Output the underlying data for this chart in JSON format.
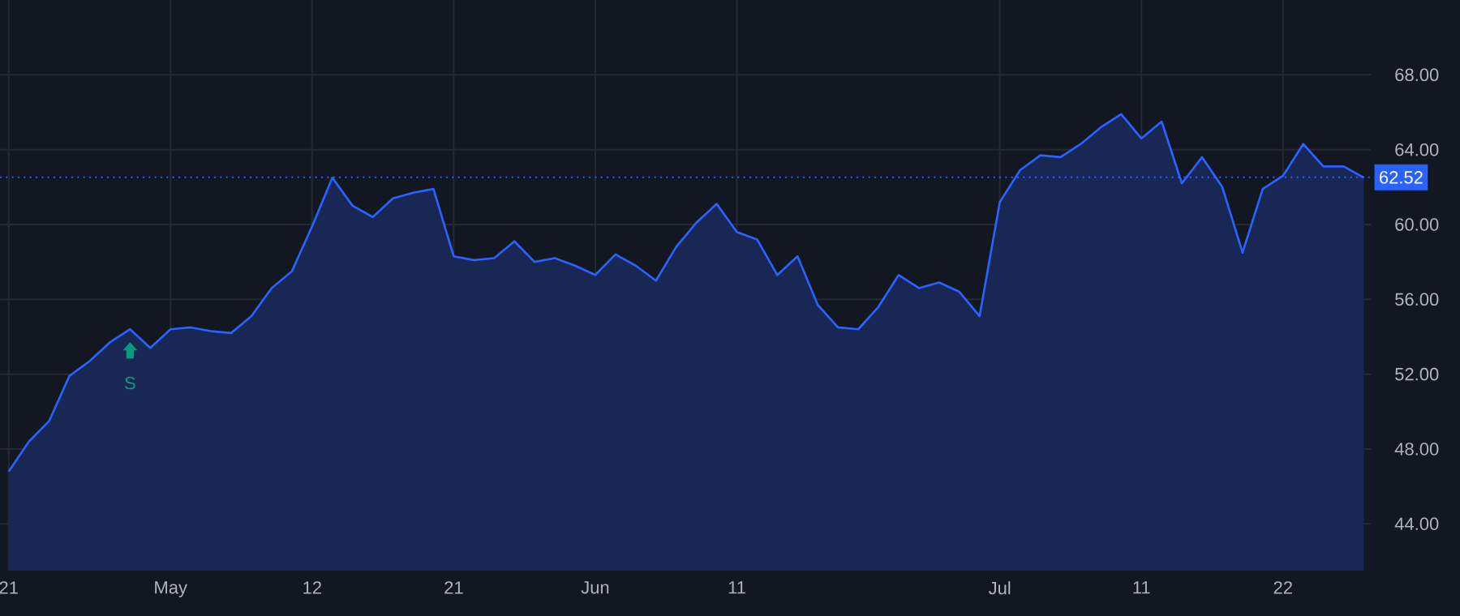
{
  "chart_data": {
    "type": "area",
    "categories": [
      "21",
      null,
      null,
      null,
      null,
      null,
      null,
      null,
      "May",
      null,
      null,
      null,
      null,
      null,
      null,
      "12",
      null,
      null,
      null,
      null,
      null,
      null,
      "21",
      null,
      null,
      null,
      null,
      null,
      null,
      "Jun",
      null,
      null,
      null,
      null,
      null,
      null,
      "11",
      null,
      null,
      null,
      null,
      null,
      null,
      null,
      null,
      null,
      null,
      null,
      null,
      "Jul",
      null,
      null,
      null,
      null,
      null,
      null,
      "11",
      null,
      null,
      null,
      null,
      null,
      null,
      "22",
      null,
      null,
      null,
      null
    ],
    "series": [
      {
        "color": "#2962ff",
        "values": [
          46.8,
          48.4,
          49.5,
          51.9,
          52.7,
          53.7,
          54.4,
          53.4,
          54.4,
          54.5,
          54.3,
          54.2,
          55.1,
          56.6,
          57.5,
          59.9,
          62.5,
          61.0,
          60.4,
          61.4,
          61.7,
          61.9,
          58.3,
          58.1,
          58.2,
          59.1,
          58.0,
          58.2,
          57.8,
          57.3,
          58.4,
          57.8,
          57.0,
          58.8,
          60.1,
          61.1,
          59.6,
          59.2,
          57.3,
          58.3,
          55.7,
          54.5,
          54.4,
          55.6,
          57.3,
          56.6,
          56.9,
          56.4,
          55.1,
          61.2,
          62.9,
          63.7,
          63.6,
          64.3,
          65.2,
          65.9,
          64.6,
          65.5,
          62.2,
          63.6,
          62.0,
          58.5,
          61.9,
          62.6,
          64.3,
          63.1,
          63.1,
          62.5
        ]
      }
    ],
    "ylim": [
      41.5,
      72
    ],
    "yticks": [
      {
        "value": 44,
        "label": "44.00"
      },
      {
        "value": 48,
        "label": "48.00"
      },
      {
        "value": 52,
        "label": "52.00"
      },
      {
        "value": 56,
        "label": "56.00"
      },
      {
        "value": 60,
        "label": "60.00"
      },
      {
        "value": 64,
        "label": "64.00"
      },
      {
        "value": 68,
        "label": "68.00"
      }
    ],
    "grid": true,
    "ref_lines": [
      {
        "axis": "y",
        "value": 62.52,
        "label": "62.52",
        "color": "#2962ff",
        "line_style": "dotted"
      }
    ],
    "annotations": [
      "S"
    ]
  }
}
